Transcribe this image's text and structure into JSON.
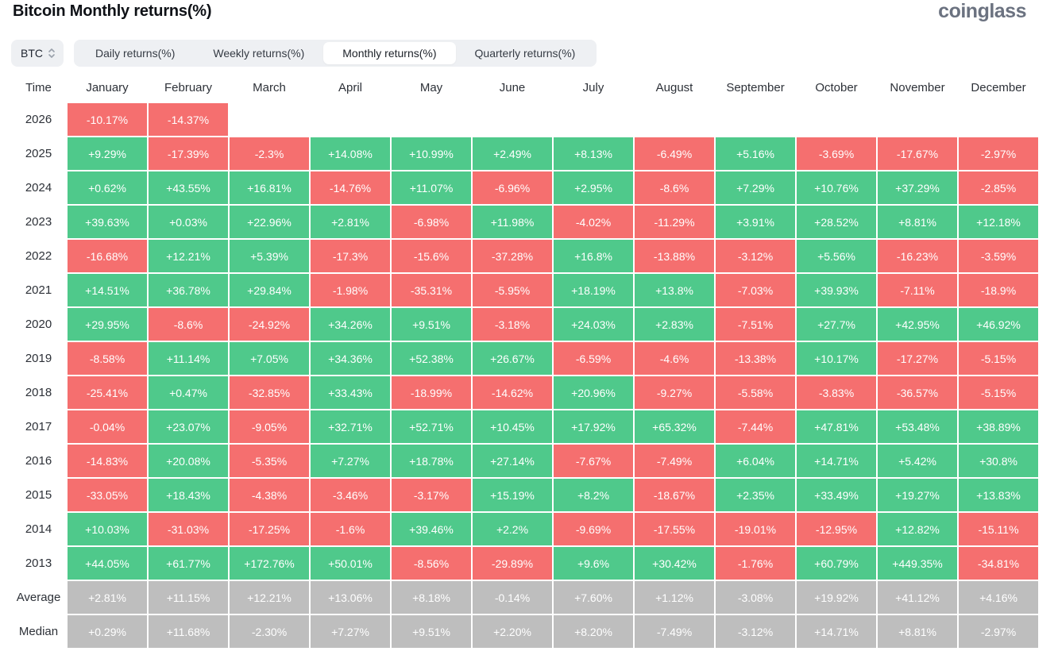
{
  "page": {
    "title": "Bitcoin Monthly returns(%)",
    "logo": "coinglass"
  },
  "controls": {
    "symbol_select": {
      "value": "BTC"
    },
    "tabs": [
      {
        "label": "Daily returns(%)",
        "active": false
      },
      {
        "label": "Weekly returns(%)",
        "active": false
      },
      {
        "label": "Monthly returns(%)",
        "active": true
      },
      {
        "label": "Quarterly returns(%)",
        "active": false
      }
    ]
  },
  "colors": {
    "positive": "#4fc98b",
    "negative": "#f56f6f",
    "summary": "#bebebe"
  },
  "chart_data": {
    "type": "heatmap",
    "title": "Bitcoin Monthly returns(%)",
    "time_header": "Time",
    "months": [
      "January",
      "February",
      "March",
      "April",
      "May",
      "June",
      "July",
      "August",
      "September",
      "October",
      "November",
      "December"
    ],
    "rows": [
      {
        "label": "2026",
        "type": "year",
        "values": [
          "-10.17%",
          "-14.37%",
          "",
          "",
          "",
          "",
          "",
          "",
          "",
          "",
          "",
          ""
        ]
      },
      {
        "label": "2025",
        "type": "year",
        "values": [
          "+9.29%",
          "-17.39%",
          "-2.3%",
          "+14.08%",
          "+10.99%",
          "+2.49%",
          "+8.13%",
          "-6.49%",
          "+5.16%",
          "-3.69%",
          "-17.67%",
          "-2.97%"
        ]
      },
      {
        "label": "2024",
        "type": "year",
        "values": [
          "+0.62%",
          "+43.55%",
          "+16.81%",
          "-14.76%",
          "+11.07%",
          "-6.96%",
          "+2.95%",
          "-8.6%",
          "+7.29%",
          "+10.76%",
          "+37.29%",
          "-2.85%"
        ]
      },
      {
        "label": "2023",
        "type": "year",
        "values": [
          "+39.63%",
          "+0.03%",
          "+22.96%",
          "+2.81%",
          "-6.98%",
          "+11.98%",
          "-4.02%",
          "-11.29%",
          "+3.91%",
          "+28.52%",
          "+8.81%",
          "+12.18%"
        ]
      },
      {
        "label": "2022",
        "type": "year",
        "values": [
          "-16.68%",
          "+12.21%",
          "+5.39%",
          "-17.3%",
          "-15.6%",
          "-37.28%",
          "+16.8%",
          "-13.88%",
          "-3.12%",
          "+5.56%",
          "-16.23%",
          "-3.59%"
        ]
      },
      {
        "label": "2021",
        "type": "year",
        "values": [
          "+14.51%",
          "+36.78%",
          "+29.84%",
          "-1.98%",
          "-35.31%",
          "-5.95%",
          "+18.19%",
          "+13.8%",
          "-7.03%",
          "+39.93%",
          "-7.11%",
          "-18.9%"
        ]
      },
      {
        "label": "2020",
        "type": "year",
        "values": [
          "+29.95%",
          "-8.6%",
          "-24.92%",
          "+34.26%",
          "+9.51%",
          "-3.18%",
          "+24.03%",
          "+2.83%",
          "-7.51%",
          "+27.7%",
          "+42.95%",
          "+46.92%"
        ]
      },
      {
        "label": "2019",
        "type": "year",
        "values": [
          "-8.58%",
          "+11.14%",
          "+7.05%",
          "+34.36%",
          "+52.38%",
          "+26.67%",
          "-6.59%",
          "-4.6%",
          "-13.38%",
          "+10.17%",
          "-17.27%",
          "-5.15%"
        ]
      },
      {
        "label": "2018",
        "type": "year",
        "values": [
          "-25.41%",
          "+0.47%",
          "-32.85%",
          "+33.43%",
          "-18.99%",
          "-14.62%",
          "+20.96%",
          "-9.27%",
          "-5.58%",
          "-3.83%",
          "-36.57%",
          "-5.15%"
        ]
      },
      {
        "label": "2017",
        "type": "year",
        "values": [
          "-0.04%",
          "+23.07%",
          "-9.05%",
          "+32.71%",
          "+52.71%",
          "+10.45%",
          "+17.92%",
          "+65.32%",
          "-7.44%",
          "+47.81%",
          "+53.48%",
          "+38.89%"
        ]
      },
      {
        "label": "2016",
        "type": "year",
        "values": [
          "-14.83%",
          "+20.08%",
          "-5.35%",
          "+7.27%",
          "+18.78%",
          "+27.14%",
          "-7.67%",
          "-7.49%",
          "+6.04%",
          "+14.71%",
          "+5.42%",
          "+30.8%"
        ]
      },
      {
        "label": "2015",
        "type": "year",
        "values": [
          "-33.05%",
          "+18.43%",
          "-4.38%",
          "-3.46%",
          "-3.17%",
          "+15.19%",
          "+8.2%",
          "-18.67%",
          "+2.35%",
          "+33.49%",
          "+19.27%",
          "+13.83%"
        ]
      },
      {
        "label": "2014",
        "type": "year",
        "values": [
          "+10.03%",
          "-31.03%",
          "-17.25%",
          "-1.6%",
          "+39.46%",
          "+2.2%",
          "-9.69%",
          "-17.55%",
          "-19.01%",
          "-12.95%",
          "+12.82%",
          "-15.11%"
        ]
      },
      {
        "label": "2013",
        "type": "year",
        "values": [
          "+44.05%",
          "+61.77%",
          "+172.76%",
          "+50.01%",
          "-8.56%",
          "-29.89%",
          "+9.6%",
          "+30.42%",
          "-1.76%",
          "+60.79%",
          "+449.35%",
          "-34.81%"
        ]
      },
      {
        "label": "Average",
        "type": "summary",
        "values": [
          "+2.81%",
          "+11.15%",
          "+12.21%",
          "+13.06%",
          "+8.18%",
          "-0.14%",
          "+7.60%",
          "+1.12%",
          "-3.08%",
          "+19.92%",
          "+41.12%",
          "+4.16%"
        ]
      },
      {
        "label": "Median",
        "type": "summary",
        "values": [
          "+0.29%",
          "+11.68%",
          "-2.30%",
          "+7.27%",
          "+9.51%",
          "+2.20%",
          "+8.20%",
          "-7.49%",
          "-3.12%",
          "+14.71%",
          "+8.81%",
          "-2.97%"
        ]
      }
    ]
  }
}
